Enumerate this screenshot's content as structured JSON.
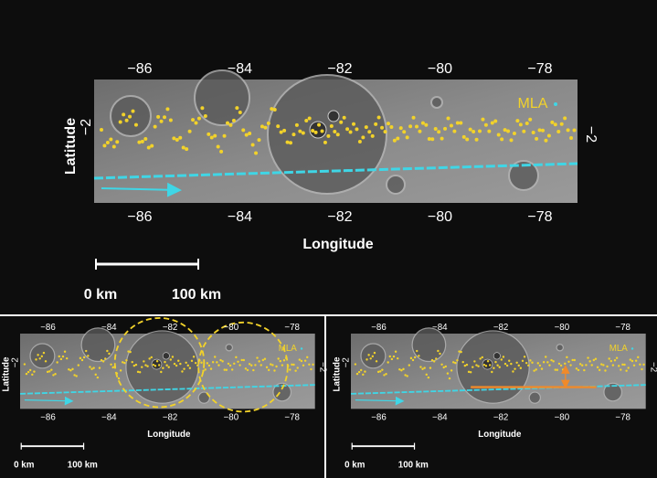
{
  "panels": [
    {
      "x_ticks_top": [
        "−86",
        "−84",
        "−82",
        "−80",
        "−78"
      ],
      "x_ticks_bottom": [
        "−86",
        "−84",
        "−82",
        "−80",
        "−78"
      ],
      "y_tick_left": "−2",
      "y_tick_right": "−2",
      "y_label": "Latitude",
      "x_label": "Longitude",
      "legend": "MLA",
      "scale_labels": [
        "0 km",
        "100 km"
      ]
    },
    {
      "x_ticks_top": [
        "−86",
        "−84",
        "−82",
        "−80",
        "−78"
      ],
      "x_ticks_bottom": [
        "−86",
        "−84",
        "−82",
        "−80",
        "−78"
      ],
      "y_tick_left": "−2",
      "y_tick_right": "−2",
      "y_label": "Latitude",
      "x_label": "Longitude",
      "legend": "MLA",
      "scale_labels": [
        "0 km",
        "100 km"
      ]
    },
    {
      "x_ticks_top": [
        "−86",
        "−84",
        "−82",
        "−80",
        "−78"
      ],
      "x_ticks_bottom": [
        "−86",
        "−84",
        "−82",
        "−80",
        "−78"
      ],
      "y_tick_left": "−2",
      "y_tick_right": "−2",
      "y_label": "Latitude",
      "x_label": "Longitude",
      "legend": "MLA",
      "scale_labels": [
        "0 km",
        "100 km"
      ]
    }
  ]
}
